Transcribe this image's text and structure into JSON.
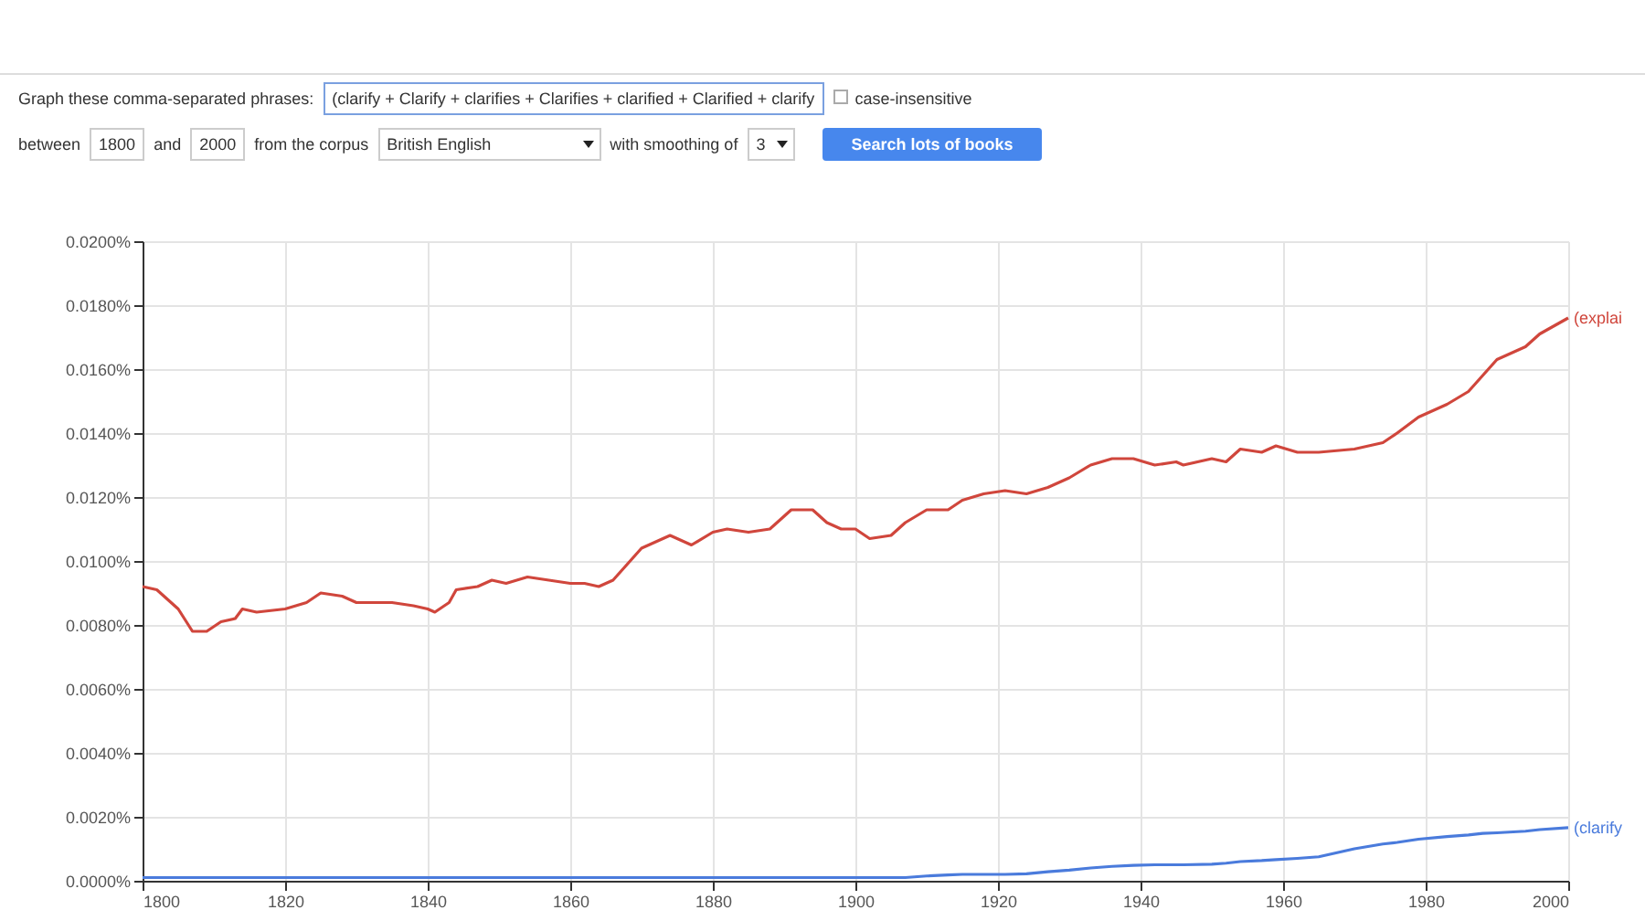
{
  "chart_data": {
    "type": "line",
    "annotations": [
      "Graph these comma-separated phrases:",
      "(clarify + Clarify + clarifies + Clarifies + clarified + Clarified + clarify",
      "case-insensitive",
      "between",
      "1800",
      "and",
      "2000",
      "from the corpus",
      "British English",
      "with smoothing of",
      "3",
      "Search lots of books"
    ],
    "x": [
      1800,
      1802,
      1805,
      1807,
      1809,
      1811,
      1813,
      1814,
      1816,
      1820,
      1823,
      1825,
      1828,
      1830,
      1833,
      1835,
      1838,
      1840,
      1841,
      1843,
      1844,
      1847,
      1849,
      1851,
      1854,
      1857,
      1860,
      1862,
      1864,
      1866,
      1868,
      1870,
      1874,
      1877,
      1880,
      1882,
      1885,
      1888,
      1891,
      1894,
      1896,
      1898,
      1900,
      1902,
      1905,
      1907,
      1910,
      1913,
      1915,
      1918,
      1921,
      1924,
      1927,
      1930,
      1933,
      1936,
      1939,
      1942,
      1945,
      1946,
      1950,
      1952,
      1954,
      1957,
      1959,
      1962,
      1965,
      1970,
      1974,
      1976,
      1979,
      1983,
      1986,
      1988,
      1990,
      1994,
      1996,
      2000
    ],
    "series": [
      {
        "name": "(explai",
        "color": "#d0463c",
        "values": [
          0.0092,
          0.0091,
          0.0085,
          0.0078,
          0.0078,
          0.0081,
          0.0082,
          0.0085,
          0.0084,
          0.0085,
          0.0087,
          0.009,
          0.0089,
          0.0087,
          0.0087,
          0.0087,
          0.0086,
          0.0085,
          0.0084,
          0.0087,
          0.0091,
          0.0092,
          0.0094,
          0.0093,
          0.0095,
          0.0094,
          0.0093,
          0.0093,
          0.0092,
          0.0094,
          0.0099,
          0.0104,
          0.0108,
          0.0105,
          0.0109,
          0.011,
          0.0109,
          0.011,
          0.0116,
          0.0116,
          0.0112,
          0.011,
          0.011,
          0.0107,
          0.0108,
          0.0112,
          0.0116,
          0.0116,
          0.0119,
          0.0121,
          0.0122,
          0.0121,
          0.0123,
          0.0126,
          0.013,
          0.0132,
          0.0132,
          0.013,
          0.0131,
          0.013,
          0.0132,
          0.0131,
          0.0135,
          0.0134,
          0.0136,
          0.0134,
          0.0134,
          0.0135,
          0.0137,
          0.014,
          0.0145,
          0.0149,
          0.0153,
          0.0158,
          0.0163,
          0.0167,
          0.0171,
          0.0176
        ]
      },
      {
        "name": "(clarify",
        "color": "#4a7bdc",
        "values": [
          0.0001,
          0.0001,
          0.0001,
          0.0001,
          0.0001,
          0.0001,
          0.0001,
          0.0001,
          0.0001,
          0.0001,
          0.0001,
          0.0001,
          0.0001,
          0.0001,
          0.0001,
          0.0001,
          0.0001,
          0.0001,
          0.0001,
          0.0001,
          0.0001,
          0.0001,
          0.0001,
          0.0001,
          0.0001,
          0.0001,
          0.0001,
          0.0001,
          0.0001,
          0.0001,
          0.0001,
          0.0001,
          0.0001,
          0.0001,
          0.0001,
          0.0001,
          0.0001,
          0.0001,
          0.0001,
          0.0001,
          0.0001,
          0.0001,
          0.0001,
          0.0001,
          0.0001,
          0.0001,
          0.00015,
          0.00018,
          0.0002,
          0.0002,
          0.0002,
          0.00022,
          0.00028,
          0.00033,
          0.0004,
          0.00045,
          0.00048,
          0.0005,
          0.0005,
          0.0005,
          0.00052,
          0.00055,
          0.0006,
          0.00063,
          0.00066,
          0.0007,
          0.00075,
          0.001,
          0.00115,
          0.0012,
          0.0013,
          0.00138,
          0.00143,
          0.00148,
          0.0015,
          0.00155,
          0.0016,
          0.00166
        ]
      }
    ],
    "xlim": [
      1800,
      2000
    ],
    "xticks": [
      1800,
      1820,
      1840,
      1860,
      1880,
      1900,
      1920,
      1940,
      1960,
      1980,
      2000
    ],
    "ylim": [
      0,
      0.02
    ],
    "yticks": [
      {
        "value": 0,
        "label": "0.0000%"
      },
      {
        "value": 0.002,
        "label": "0.0020%"
      },
      {
        "value": 0.004,
        "label": "0.0040%"
      },
      {
        "value": 0.006,
        "label": "0.0060%"
      },
      {
        "value": 0.008,
        "label": "0.0080%"
      },
      {
        "value": 0.01,
        "label": "0.0100%"
      },
      {
        "value": 0.012,
        "label": "0.0120%"
      },
      {
        "value": 0.014,
        "label": "0.0140%"
      },
      {
        "value": 0.016,
        "label": "0.0160%"
      },
      {
        "value": 0.018,
        "label": "0.0180%"
      },
      {
        "value": 0.02,
        "label": "0.0200%"
      }
    ],
    "grid": true,
    "marker": "none",
    "line_style": "solid"
  }
}
